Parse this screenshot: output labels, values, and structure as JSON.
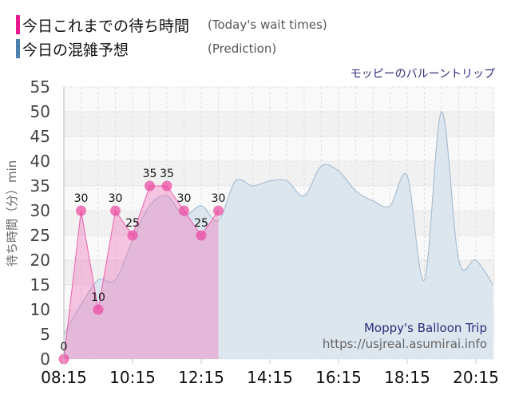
{
  "legend": [
    {
      "label": "今日これまでの待ち時間",
      "label_en": "(Today's wait times)",
      "color": "#e6198c"
    },
    {
      "label": "今日の混雑予想",
      "label_en": "(Prediction)",
      "color": "#4a7fb0"
    }
  ],
  "watermark": {
    "name": "Moppy's Balloon Trip",
    "url": "https://usjreal.asumirai.info"
  },
  "chart_data": {
    "type": "area",
    "title": "モッピーのバルーントリップ",
    "xlabel": "",
    "ylabel": "待ち時間（分）min",
    "ylim": [
      0,
      55
    ],
    "yticks": [
      0,
      5,
      10,
      15,
      20,
      25,
      30,
      35,
      40,
      45,
      50,
      55
    ],
    "xticks": [
      "08:15",
      "10:15",
      "12:15",
      "14:15",
      "16:15",
      "18:15",
      "20:15"
    ],
    "grid": true,
    "series": [
      {
        "name": "今日これまでの待ち時間 (Today's wait times)",
        "color": "#e6198c",
        "x": [
          "08:15",
          "08:45",
          "09:15",
          "09:45",
          "10:15",
          "10:45",
          "11:15",
          "11:45",
          "12:15",
          "12:45"
        ],
        "values": [
          0,
          30,
          10,
          30,
          25,
          35,
          35,
          30,
          25,
          30
        ],
        "data_labels": true
      },
      {
        "name": "今日の混雑予想 (Prediction)",
        "color": "#4a7fb0",
        "x": [
          "08:15",
          "08:45",
          "09:15",
          "09:45",
          "10:15",
          "10:45",
          "11:15",
          "11:45",
          "12:15",
          "12:45",
          "13:15",
          "13:45",
          "14:15",
          "14:45",
          "15:15",
          "15:45",
          "16:15",
          "16:45",
          "17:15",
          "17:45",
          "18:15",
          "18:45",
          "19:15",
          "19:45",
          "20:15",
          "20:45"
        ],
        "values": [
          5,
          11,
          16,
          16,
          24,
          31,
          33,
          29,
          31,
          28,
          36,
          35,
          36,
          36,
          33,
          39,
          38,
          34,
          32,
          31,
          37,
          16,
          50,
          20,
          20,
          15
        ]
      }
    ]
  }
}
